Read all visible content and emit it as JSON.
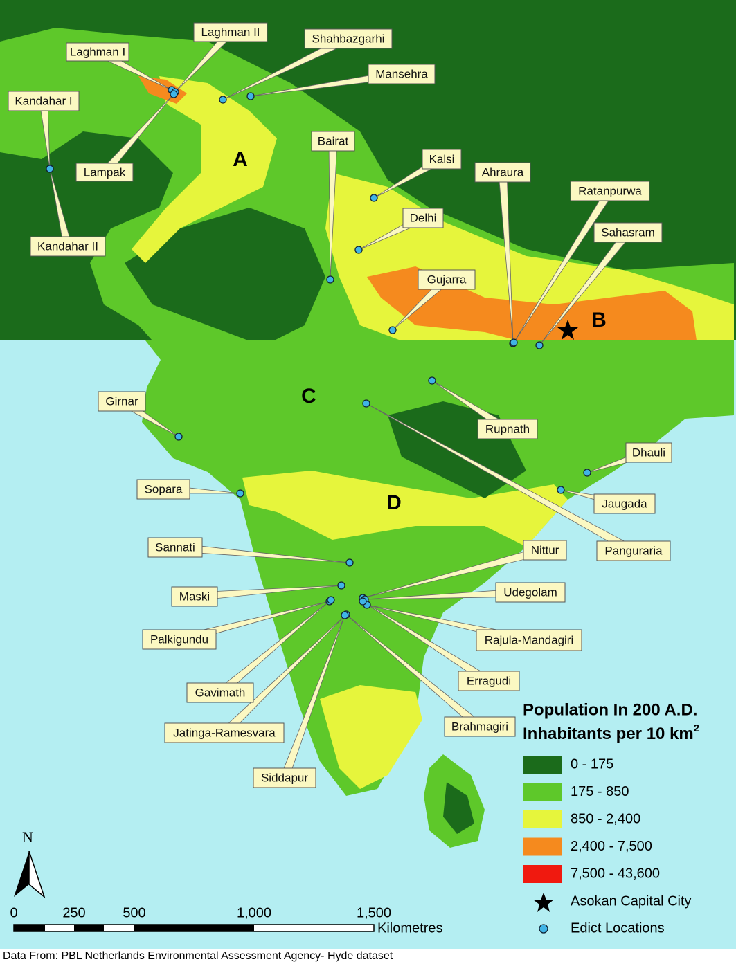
{
  "map": {
    "locations": [
      {
        "name": "Laghman I"
      },
      {
        "name": "Laghman II"
      },
      {
        "name": "Shahbazgarhi"
      },
      {
        "name": "Mansehra"
      },
      {
        "name": "Kandahar I"
      },
      {
        "name": "Lampak"
      },
      {
        "name": "Kandahar II"
      },
      {
        "name": "Bairat"
      },
      {
        "name": "Kalsi"
      },
      {
        "name": "Delhi"
      },
      {
        "name": "Ahraura"
      },
      {
        "name": "Ratanpurwa"
      },
      {
        "name": "Sahasram"
      },
      {
        "name": "Gujarra"
      },
      {
        "name": "Girnar"
      },
      {
        "name": "Rupnath"
      },
      {
        "name": "Dhauli"
      },
      {
        "name": "Jaugada"
      },
      {
        "name": "Panguraria"
      },
      {
        "name": "Sopara"
      },
      {
        "name": "Sannati"
      },
      {
        "name": "Nittur"
      },
      {
        "name": "Maski"
      },
      {
        "name": "Udegolam"
      },
      {
        "name": "Palkigundu"
      },
      {
        "name": "Rajula-Mandagiri"
      },
      {
        "name": "Erragudi"
      },
      {
        "name": "Gavimath"
      },
      {
        "name": "Brahmagiri"
      },
      {
        "name": "Jatinga-Ramesvara"
      },
      {
        "name": "Siddapur"
      }
    ],
    "regions": [
      "A",
      "B",
      "C",
      "D"
    ],
    "legend": {
      "title": "Population In 200 A.D.",
      "subtitle": "Inhabitants per 10 km",
      "subtitle_superscript": "2",
      "classes": [
        {
          "label": "0 - 175",
          "color": "#1b6b1b"
        },
        {
          "label": "175 - 850",
          "color": "#5ec82a"
        },
        {
          "label": "850 - 2,400",
          "color": "#e6f53c"
        },
        {
          "label": "2,400 - 7,500",
          "color": "#f58a1e"
        },
        {
          "label": "7,500 - 43,600",
          "color": "#f0190f"
        }
      ],
      "capital": "Asokan Capital City",
      "edicts": "Edict Locations"
    },
    "scale": {
      "labels": [
        "0",
        "250",
        "500",
        "1,000",
        "1,500"
      ],
      "unit": "Kilometres"
    },
    "north": "N"
  },
  "source": "Data From: PBL Netherlands Environmental Assessment Agency- Hyde dataset"
}
